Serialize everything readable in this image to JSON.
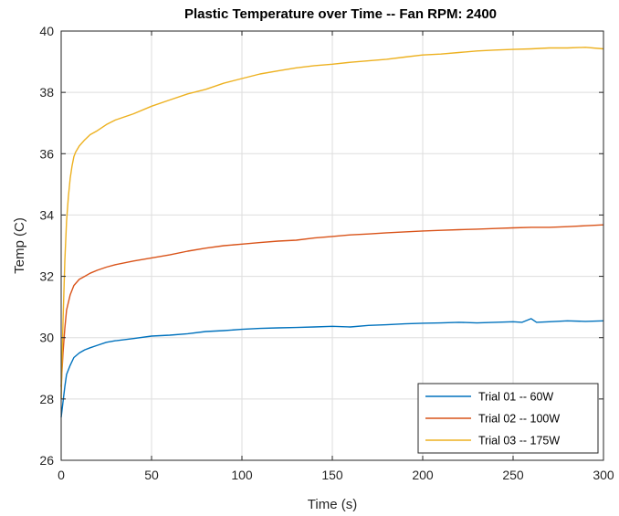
{
  "chart_data": {
    "type": "line",
    "title": "Plastic Temperature over Time -- Fan RPM: 2400",
    "xlabel": "Time (s)",
    "ylabel": "Temp (C)",
    "xlim": [
      0,
      300
    ],
    "ylim": [
      26,
      40
    ],
    "xticks": [
      0,
      50,
      100,
      150,
      200,
      250,
      300
    ],
    "yticks": [
      26,
      28,
      30,
      32,
      34,
      36,
      38,
      40
    ],
    "grid": true,
    "legend_position": "bottom-right",
    "series": [
      {
        "name": "Trial 01 -- 60W",
        "color": "#0072BD",
        "x": [
          0,
          1,
          2,
          3,
          5,
          7,
          10,
          13,
          16,
          20,
          25,
          30,
          40,
          50,
          60,
          70,
          80,
          90,
          100,
          110,
          120,
          130,
          140,
          150,
          160,
          170,
          180,
          190,
          200,
          210,
          220,
          230,
          240,
          250,
          255,
          260,
          263,
          270,
          280,
          290,
          300
        ],
        "y": [
          27.4,
          27.9,
          28.4,
          28.8,
          29.1,
          29.35,
          29.5,
          29.6,
          29.67,
          29.75,
          29.85,
          29.9,
          29.97,
          30.05,
          30.08,
          30.13,
          30.2,
          30.23,
          30.27,
          30.3,
          30.32,
          30.33,
          30.35,
          30.37,
          30.35,
          30.4,
          30.42,
          30.45,
          30.47,
          30.48,
          30.5,
          30.48,
          30.5,
          30.52,
          30.5,
          30.62,
          30.5,
          30.52,
          30.55,
          30.53,
          30.55
        ]
      },
      {
        "name": "Trial 02 -- 100W",
        "color": "#D95319",
        "x": [
          0,
          1,
          2,
          3,
          5,
          7,
          10,
          13,
          16,
          20,
          25,
          30,
          40,
          50,
          60,
          70,
          80,
          90,
          100,
          110,
          120,
          130,
          140,
          150,
          160,
          170,
          180,
          190,
          200,
          210,
          220,
          230,
          240,
          250,
          260,
          270,
          280,
          290,
          300
        ],
        "y": [
          28.4,
          29.5,
          30.3,
          30.9,
          31.4,
          31.7,
          31.9,
          32.0,
          32.1,
          32.2,
          32.3,
          32.38,
          32.5,
          32.6,
          32.7,
          32.82,
          32.92,
          33.0,
          33.05,
          33.1,
          33.15,
          33.18,
          33.25,
          33.3,
          33.35,
          33.38,
          33.42,
          33.45,
          33.48,
          33.5,
          33.52,
          33.54,
          33.56,
          33.58,
          33.6,
          33.6,
          33.62,
          33.65,
          33.68
        ]
      },
      {
        "name": "Trial 03 -- 175W",
        "color": "#EDB120",
        "x": [
          0,
          1,
          2,
          3,
          4,
          5,
          6,
          7,
          8,
          10,
          13,
          16,
          20,
          25,
          30,
          40,
          50,
          60,
          70,
          80,
          90,
          100,
          110,
          120,
          130,
          140,
          150,
          160,
          170,
          180,
          190,
          200,
          210,
          220,
          230,
          240,
          250,
          260,
          270,
          280,
          290,
          300
        ],
        "y": [
          28.0,
          30.5,
          32.5,
          33.8,
          34.6,
          35.2,
          35.6,
          35.9,
          36.05,
          36.25,
          36.45,
          36.62,
          36.75,
          36.95,
          37.1,
          37.3,
          37.55,
          37.75,
          37.95,
          38.1,
          38.3,
          38.45,
          38.6,
          38.7,
          38.8,
          38.87,
          38.92,
          38.98,
          39.03,
          39.08,
          39.15,
          39.22,
          39.25,
          39.3,
          39.35,
          39.38,
          39.4,
          39.42,
          39.45,
          39.45,
          39.47,
          39.42
        ]
      }
    ]
  }
}
